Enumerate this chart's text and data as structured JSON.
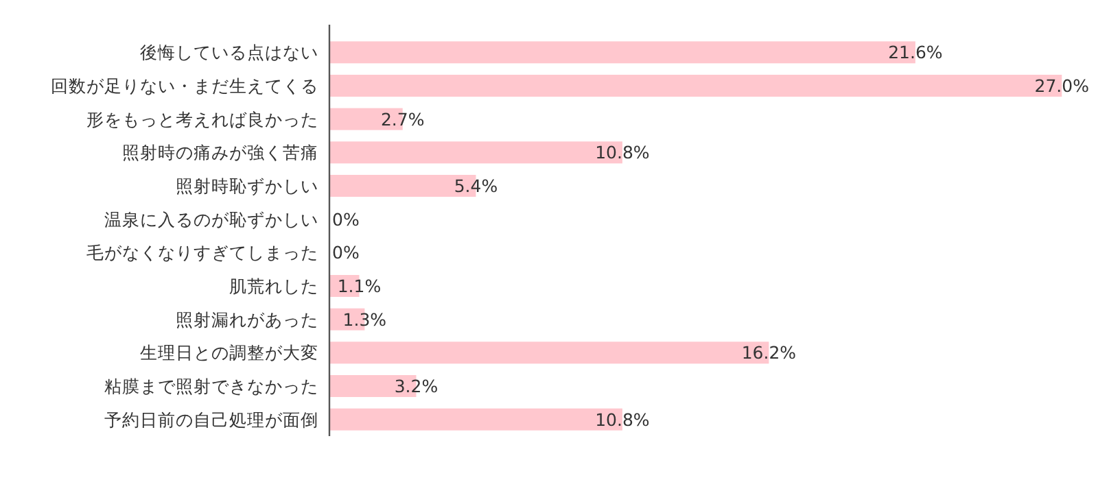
{
  "chart_data": {
    "type": "bar",
    "orientation": "horizontal",
    "categories": [
      "後悔している点はない",
      "回数が足りない・まだ生えてくる",
      "形をもっと考えれば良かった",
      "照射時の痛みが強く苦痛",
      "照射時恥ずかしい",
      "温泉に入るのが恥ずかしい",
      "毛がなくなりすぎてしまった",
      "肌荒れした",
      "照射漏れがあった",
      "生理日との調整が大変",
      "粘膜まで照射できなかった",
      "予約日前の自己処理が面倒"
    ],
    "values": [
      21.6,
      27.0,
      2.7,
      10.8,
      5.4,
      0,
      0,
      1.1,
      1.3,
      16.2,
      3.2,
      10.8
    ],
    "value_labels": [
      "21.6%",
      "27.0%",
      "2.7%",
      "10.8%",
      "5.4%",
      "0%",
      "0%",
      "1.1%",
      "1.3%",
      "16.2%",
      "3.2%",
      "10.8%"
    ],
    "color": "#ffc7ce"
  }
}
